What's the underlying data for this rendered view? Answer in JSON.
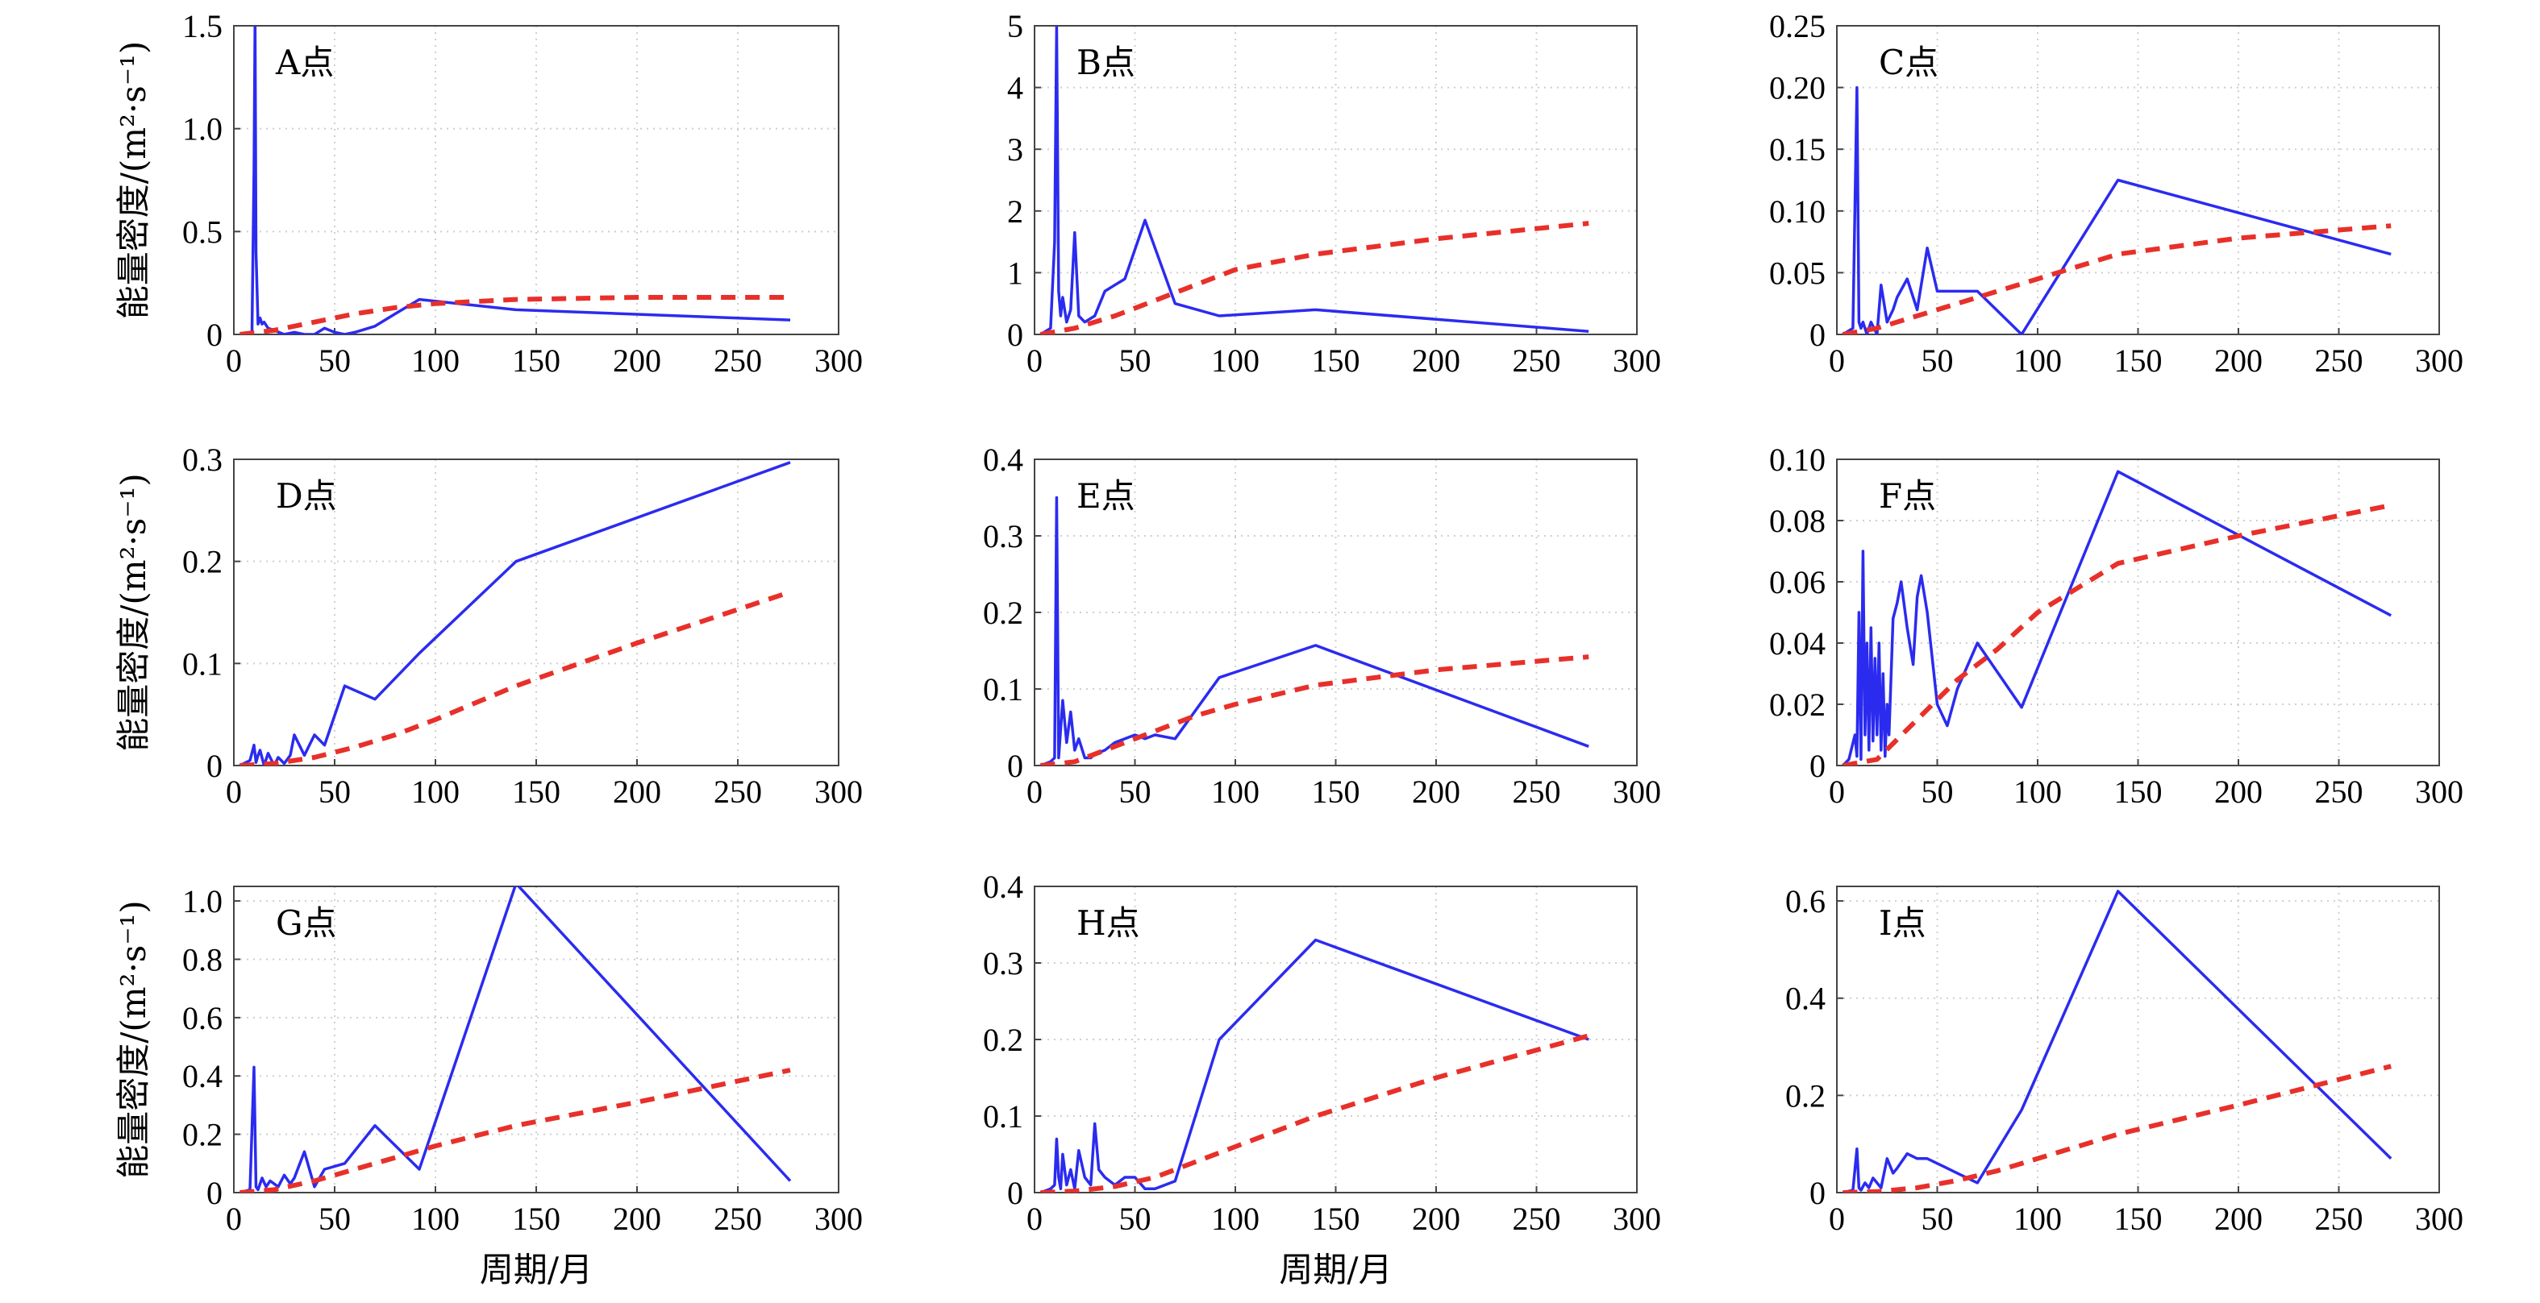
{
  "chart_data": [
    {
      "type": "line",
      "panel_label": "A点",
      "ylabel": "能量密度/(m²·s⁻¹)",
      "xlabel": "",
      "xlim": [
        0,
        300
      ],
      "ylim": [
        0,
        1.5
      ],
      "xticks": [
        "0",
        "50",
        "100",
        "150",
        "200",
        "250",
        "300"
      ],
      "yticks": [
        {
          "v": 0,
          "t": "0"
        },
        {
          "v": 0.5,
          "t": "0.5"
        },
        {
          "v": 1.0,
          "t": "1.0"
        },
        {
          "v": 1.5,
          "t": "1.5"
        }
      ],
      "grid": true,
      "series": [
        {
          "style": "solid",
          "color": "#2b2bf0",
          "x": [
            3,
            6,
            9,
            10,
            10.5,
            11,
            12,
            13,
            14,
            15,
            17,
            20,
            25,
            30,
            35,
            40,
            45,
            50,
            55,
            60,
            70,
            80,
            92,
            140,
            276
          ],
          "y": [
            0,
            0,
            0.01,
            0.8,
            1.55,
            0.4,
            0.05,
            0.08,
            0.05,
            0.06,
            0.03,
            0.02,
            0,
            0.01,
            0,
            0,
            0.03,
            0.01,
            0,
            0.01,
            0.04,
            0.1,
            0.17,
            0.12,
            0.07
          ]
        },
        {
          "style": "dashed",
          "color": "#e8302a",
          "x": [
            3,
            20,
            40,
            60,
            80,
            100,
            140,
            200,
            276
          ],
          "y": [
            0,
            0.02,
            0.06,
            0.1,
            0.13,
            0.15,
            0.17,
            0.18,
            0.18
          ]
        }
      ]
    },
    {
      "type": "line",
      "panel_label": "B点",
      "ylabel": "",
      "xlabel": "",
      "xlim": [
        0,
        300
      ],
      "ylim": [
        0,
        5
      ],
      "xticks": [
        "0",
        "50",
        "100",
        "150",
        "200",
        "250",
        "300"
      ],
      "yticks": [
        {
          "v": 0,
          "t": "0"
        },
        {
          "v": 1,
          "t": "1"
        },
        {
          "v": 2,
          "t": "2"
        },
        {
          "v": 3,
          "t": "3"
        },
        {
          "v": 4,
          "t": "4"
        },
        {
          "v": 5,
          "t": "5"
        }
      ],
      "grid": true,
      "series": [
        {
          "style": "solid",
          "color": "#2b2bf0",
          "x": [
            3,
            8,
            10,
            11,
            12,
            13,
            14,
            16,
            18,
            20,
            22,
            25,
            30,
            35,
            40,
            45,
            55,
            70,
            92,
            140,
            276
          ],
          "y": [
            0,
            0.1,
            1.5,
            5,
            0.7,
            0.3,
            0.6,
            0.2,
            0.4,
            1.65,
            0.3,
            0.2,
            0.3,
            0.7,
            0.8,
            0.9,
            1.85,
            0.5,
            0.3,
            0.4,
            0.05
          ]
        },
        {
          "style": "dashed",
          "color": "#e8302a",
          "x": [
            3,
            20,
            40,
            60,
            80,
            100,
            140,
            200,
            276
          ],
          "y": [
            0,
            0.1,
            0.3,
            0.55,
            0.8,
            1.05,
            1.3,
            1.55,
            1.8
          ]
        }
      ]
    },
    {
      "type": "line",
      "panel_label": "C点",
      "ylabel": "",
      "xlabel": "",
      "xlim": [
        0,
        300
      ],
      "ylim": [
        0,
        0.25
      ],
      "xticks": [
        "0",
        "50",
        "100",
        "150",
        "200",
        "250",
        "300"
      ],
      "yticks": [
        {
          "v": 0,
          "t": "0"
        },
        {
          "v": 0.05,
          "t": "0.05"
        },
        {
          "v": 0.1,
          "t": "0.10"
        },
        {
          "v": 0.15,
          "t": "0.15"
        },
        {
          "v": 0.2,
          "t": "0.20"
        },
        {
          "v": 0.25,
          "t": "0.25"
        }
      ],
      "grid": true,
      "series": [
        {
          "style": "solid",
          "color": "#2b2bf0",
          "x": [
            3,
            8,
            10,
            11,
            12,
            13,
            15,
            17,
            20,
            22,
            25,
            28,
            30,
            35,
            40,
            45,
            50,
            60,
            70,
            92,
            140,
            276
          ],
          "y": [
            0,
            0.005,
            0.2,
            0.01,
            0.005,
            0.01,
            0,
            0.01,
            0,
            0.04,
            0.01,
            0.02,
            0.03,
            0.045,
            0.02,
            0.07,
            0.035,
            0.035,
            0.035,
            0,
            0.125,
            0.065
          ]
        },
        {
          "style": "dashed",
          "color": "#e8302a",
          "x": [
            3,
            20,
            40,
            60,
            80,
            100,
            140,
            200,
            276
          ],
          "y": [
            0,
            0.005,
            0.015,
            0.025,
            0.035,
            0.045,
            0.065,
            0.078,
            0.088
          ]
        }
      ]
    },
    {
      "type": "line",
      "panel_label": "D点",
      "ylabel": "能量密度/(m²·s⁻¹)",
      "xlabel": "",
      "xlim": [
        0,
        300
      ],
      "ylim": [
        0,
        0.3
      ],
      "xticks": [
        "0",
        "50",
        "100",
        "150",
        "200",
        "250",
        "300"
      ],
      "yticks": [
        {
          "v": 0,
          "t": "0"
        },
        {
          "v": 0.1,
          "t": "0.1"
        },
        {
          "v": 0.2,
          "t": "0.2"
        },
        {
          "v": 0.3,
          "t": "0.3"
        }
      ],
      "grid": true,
      "series": [
        {
          "style": "solid",
          "color": "#2b2bf0",
          "x": [
            3,
            8,
            10,
            11,
            12,
            13,
            15,
            17,
            20,
            22,
            25,
            28,
            30,
            35,
            40,
            45,
            55,
            70,
            92,
            140,
            276
          ],
          "y": [
            0,
            0.005,
            0.02,
            0.003,
            0.01,
            0.015,
            0,
            0.012,
            0,
            0.008,
            0.002,
            0.01,
            0.03,
            0.01,
            0.03,
            0.02,
            0.078,
            0.065,
            0.11,
            0.2,
            0.297
          ]
        },
        {
          "style": "dashed",
          "color": "#e8302a",
          "x": [
            3,
            20,
            40,
            60,
            80,
            100,
            140,
            200,
            276
          ],
          "y": [
            0,
            0.002,
            0.008,
            0.018,
            0.03,
            0.045,
            0.078,
            0.12,
            0.17
          ]
        }
      ]
    },
    {
      "type": "line",
      "panel_label": "E点",
      "ylabel": "",
      "xlabel": "",
      "xlim": [
        0,
        300
      ],
      "ylim": [
        0,
        0.4
      ],
      "xticks": [
        "0",
        "50",
        "100",
        "150",
        "200",
        "250",
        "300"
      ],
      "yticks": [
        {
          "v": 0,
          "t": "0"
        },
        {
          "v": 0.1,
          "t": "0.1"
        },
        {
          "v": 0.2,
          "t": "0.2"
        },
        {
          "v": 0.3,
          "t": "0.3"
        },
        {
          "v": 0.4,
          "t": "0.4"
        }
      ],
      "grid": true,
      "series": [
        {
          "style": "solid",
          "color": "#2b2bf0",
          "x": [
            3,
            8,
            10,
            11,
            12,
            14,
            16,
            18,
            20,
            22,
            25,
            28,
            30,
            35,
            40,
            50,
            55,
            60,
            70,
            92,
            140,
            276
          ],
          "y": [
            0,
            0.005,
            0.01,
            0.35,
            0.01,
            0.085,
            0.03,
            0.07,
            0.02,
            0.035,
            0.01,
            0.01,
            0.015,
            0.02,
            0.03,
            0.04,
            0.035,
            0.04,
            0.035,
            0.115,
            0.157,
            0.025
          ]
        },
        {
          "style": "dashed",
          "color": "#e8302a",
          "x": [
            3,
            20,
            40,
            60,
            80,
            100,
            140,
            200,
            276
          ],
          "y": [
            0,
            0.005,
            0.025,
            0.045,
            0.065,
            0.08,
            0.105,
            0.125,
            0.142
          ]
        }
      ]
    },
    {
      "type": "line",
      "panel_label": "F点",
      "ylabel": "",
      "xlabel": "",
      "xlim": [
        0,
        300
      ],
      "ylim": [
        0,
        0.1
      ],
      "xticks": [
        "0",
        "50",
        "100",
        "150",
        "200",
        "250",
        "300"
      ],
      "yticks": [
        {
          "v": 0,
          "t": "0"
        },
        {
          "v": 0.02,
          "t": "0.02"
        },
        {
          "v": 0.04,
          "t": "0.04"
        },
        {
          "v": 0.06,
          "t": "0.06"
        },
        {
          "v": 0.08,
          "t": "0.08"
        },
        {
          "v": 0.1,
          "t": "0.10"
        }
      ],
      "grid": true,
      "series": [
        {
          "style": "solid",
          "color": "#2b2bf0",
          "x": [
            3,
            6,
            9,
            10,
            11,
            12,
            13,
            14,
            15,
            16,
            17,
            18,
            19,
            20,
            21,
            22,
            23,
            24,
            25,
            26,
            28,
            30,
            32,
            35,
            38,
            40,
            42,
            45,
            50,
            55,
            60,
            70,
            92,
            140,
            276
          ],
          "y": [
            0,
            0.002,
            0.01,
            0.003,
            0.05,
            0.002,
            0.07,
            0.01,
            0.04,
            0.005,
            0.045,
            0.008,
            0.035,
            0.01,
            0.04,
            0.005,
            0.03,
            0.003,
            0.02,
            0.01,
            0.048,
            0.053,
            0.06,
            0.045,
            0.033,
            0.055,
            0.062,
            0.05,
            0.02,
            0.013,
            0.025,
            0.04,
            0.019,
            0.096,
            0.049
          ]
        },
        {
          "style": "dashed",
          "color": "#e8302a",
          "x": [
            3,
            20,
            40,
            60,
            80,
            100,
            140,
            200,
            276
          ],
          "y": [
            0,
            0.002,
            0.015,
            0.028,
            0.038,
            0.05,
            0.066,
            0.075,
            0.085
          ]
        }
      ]
    },
    {
      "type": "line",
      "panel_label": "G点",
      "ylabel": "能量密度/(m²·s⁻¹)",
      "xlabel": "周期/月",
      "xlim": [
        0,
        300
      ],
      "ylim": [
        0,
        1.05
      ],
      "xticks": [
        "0",
        "50",
        "100",
        "150",
        "200",
        "250",
        "300"
      ],
      "yticks": [
        {
          "v": 0,
          "t": "0"
        },
        {
          "v": 0.2,
          "t": "0.2"
        },
        {
          "v": 0.4,
          "t": "0.4"
        },
        {
          "v": 0.6,
          "t": "0.6"
        },
        {
          "v": 0.8,
          "t": "0.8"
        },
        {
          "v": 1.0,
          "t": "1.0"
        }
      ],
      "grid": true,
      "series": [
        {
          "style": "solid",
          "color": "#2b2bf0",
          "x": [
            3,
            8,
            10,
            11,
            12,
            14,
            16,
            18,
            20,
            22,
            25,
            28,
            30,
            35,
            40,
            45,
            50,
            55,
            70,
            92,
            140,
            276
          ],
          "y": [
            0,
            0.01,
            0.43,
            0.02,
            0.01,
            0.05,
            0.02,
            0.04,
            0.03,
            0.02,
            0.06,
            0.03,
            0.05,
            0.14,
            0.02,
            0.08,
            0.09,
            0.1,
            0.23,
            0.08,
            1.06,
            0.04
          ]
        },
        {
          "style": "dashed",
          "color": "#e8302a",
          "x": [
            3,
            20,
            40,
            60,
            80,
            100,
            140,
            200,
            276
          ],
          "y": [
            0,
            0.01,
            0.04,
            0.08,
            0.12,
            0.16,
            0.23,
            0.31,
            0.42
          ]
        }
      ]
    },
    {
      "type": "line",
      "panel_label": "H点",
      "ylabel": "",
      "xlabel": "周期/月",
      "xlim": [
        0,
        300
      ],
      "ylim": [
        0,
        0.4
      ],
      "xticks": [
        "0",
        "50",
        "100",
        "150",
        "200",
        "250",
        "300"
      ],
      "yticks": [
        {
          "v": 0,
          "t": "0"
        },
        {
          "v": 0.1,
          "t": "0.1"
        },
        {
          "v": 0.2,
          "t": "0.2"
        },
        {
          "v": 0.3,
          "t": "0.3"
        },
        {
          "v": 0.4,
          "t": "0.4"
        }
      ],
      "grid": true,
      "series": [
        {
          "style": "solid",
          "color": "#2b2bf0",
          "x": [
            3,
            8,
            10,
            11,
            12,
            13,
            14,
            16,
            18,
            20,
            22,
            25,
            28,
            30,
            32,
            35,
            40,
            45,
            50,
            55,
            60,
            70,
            92,
            140,
            276
          ],
          "y": [
            0,
            0.005,
            0.01,
            0.07,
            0.02,
            0.005,
            0.05,
            0.01,
            0.03,
            0.005,
            0.055,
            0.02,
            0.01,
            0.09,
            0.03,
            0.02,
            0.01,
            0.02,
            0.02,
            0.005,
            0.005,
            0.015,
            0.2,
            0.33,
            0.2
          ]
        },
        {
          "style": "dashed",
          "color": "#e8302a",
          "x": [
            3,
            20,
            40,
            60,
            80,
            100,
            140,
            200,
            276
          ],
          "y": [
            0,
            0.002,
            0.008,
            0.02,
            0.04,
            0.06,
            0.1,
            0.15,
            0.205
          ]
        }
      ]
    },
    {
      "type": "line",
      "panel_label": "I点",
      "ylabel": "",
      "xlabel": "",
      "xlim": [
        0,
        300
      ],
      "ylim": [
        0,
        0.63
      ],
      "xticks": [
        "0",
        "50",
        "100",
        "150",
        "200",
        "250",
        "300"
      ],
      "yticks": [
        {
          "v": 0,
          "t": "0"
        },
        {
          "v": 0.2,
          "t": "0.2"
        },
        {
          "v": 0.4,
          "t": "0.4"
        },
        {
          "v": 0.6,
          "t": "0.6"
        }
      ],
      "grid": true,
      "series": [
        {
          "style": "solid",
          "color": "#2b2bf0",
          "x": [
            3,
            8,
            10,
            11,
            12,
            14,
            16,
            18,
            20,
            22,
            25,
            28,
            30,
            35,
            40,
            45,
            50,
            55,
            60,
            70,
            92,
            140,
            276
          ],
          "y": [
            0,
            0.005,
            0.09,
            0.01,
            0.005,
            0.02,
            0.01,
            0.03,
            0.02,
            0.01,
            0.07,
            0.04,
            0.05,
            0.08,
            0.07,
            0.07,
            0.06,
            0.05,
            0.04,
            0.02,
            0.17,
            0.62,
            0.07
          ]
        },
        {
          "style": "dashed",
          "color": "#e8302a",
          "x": [
            3,
            20,
            40,
            60,
            80,
            100,
            140,
            200,
            276
          ],
          "y": [
            0,
            0.002,
            0.01,
            0.025,
            0.045,
            0.07,
            0.12,
            0.18,
            0.26
          ]
        }
      ]
    }
  ]
}
